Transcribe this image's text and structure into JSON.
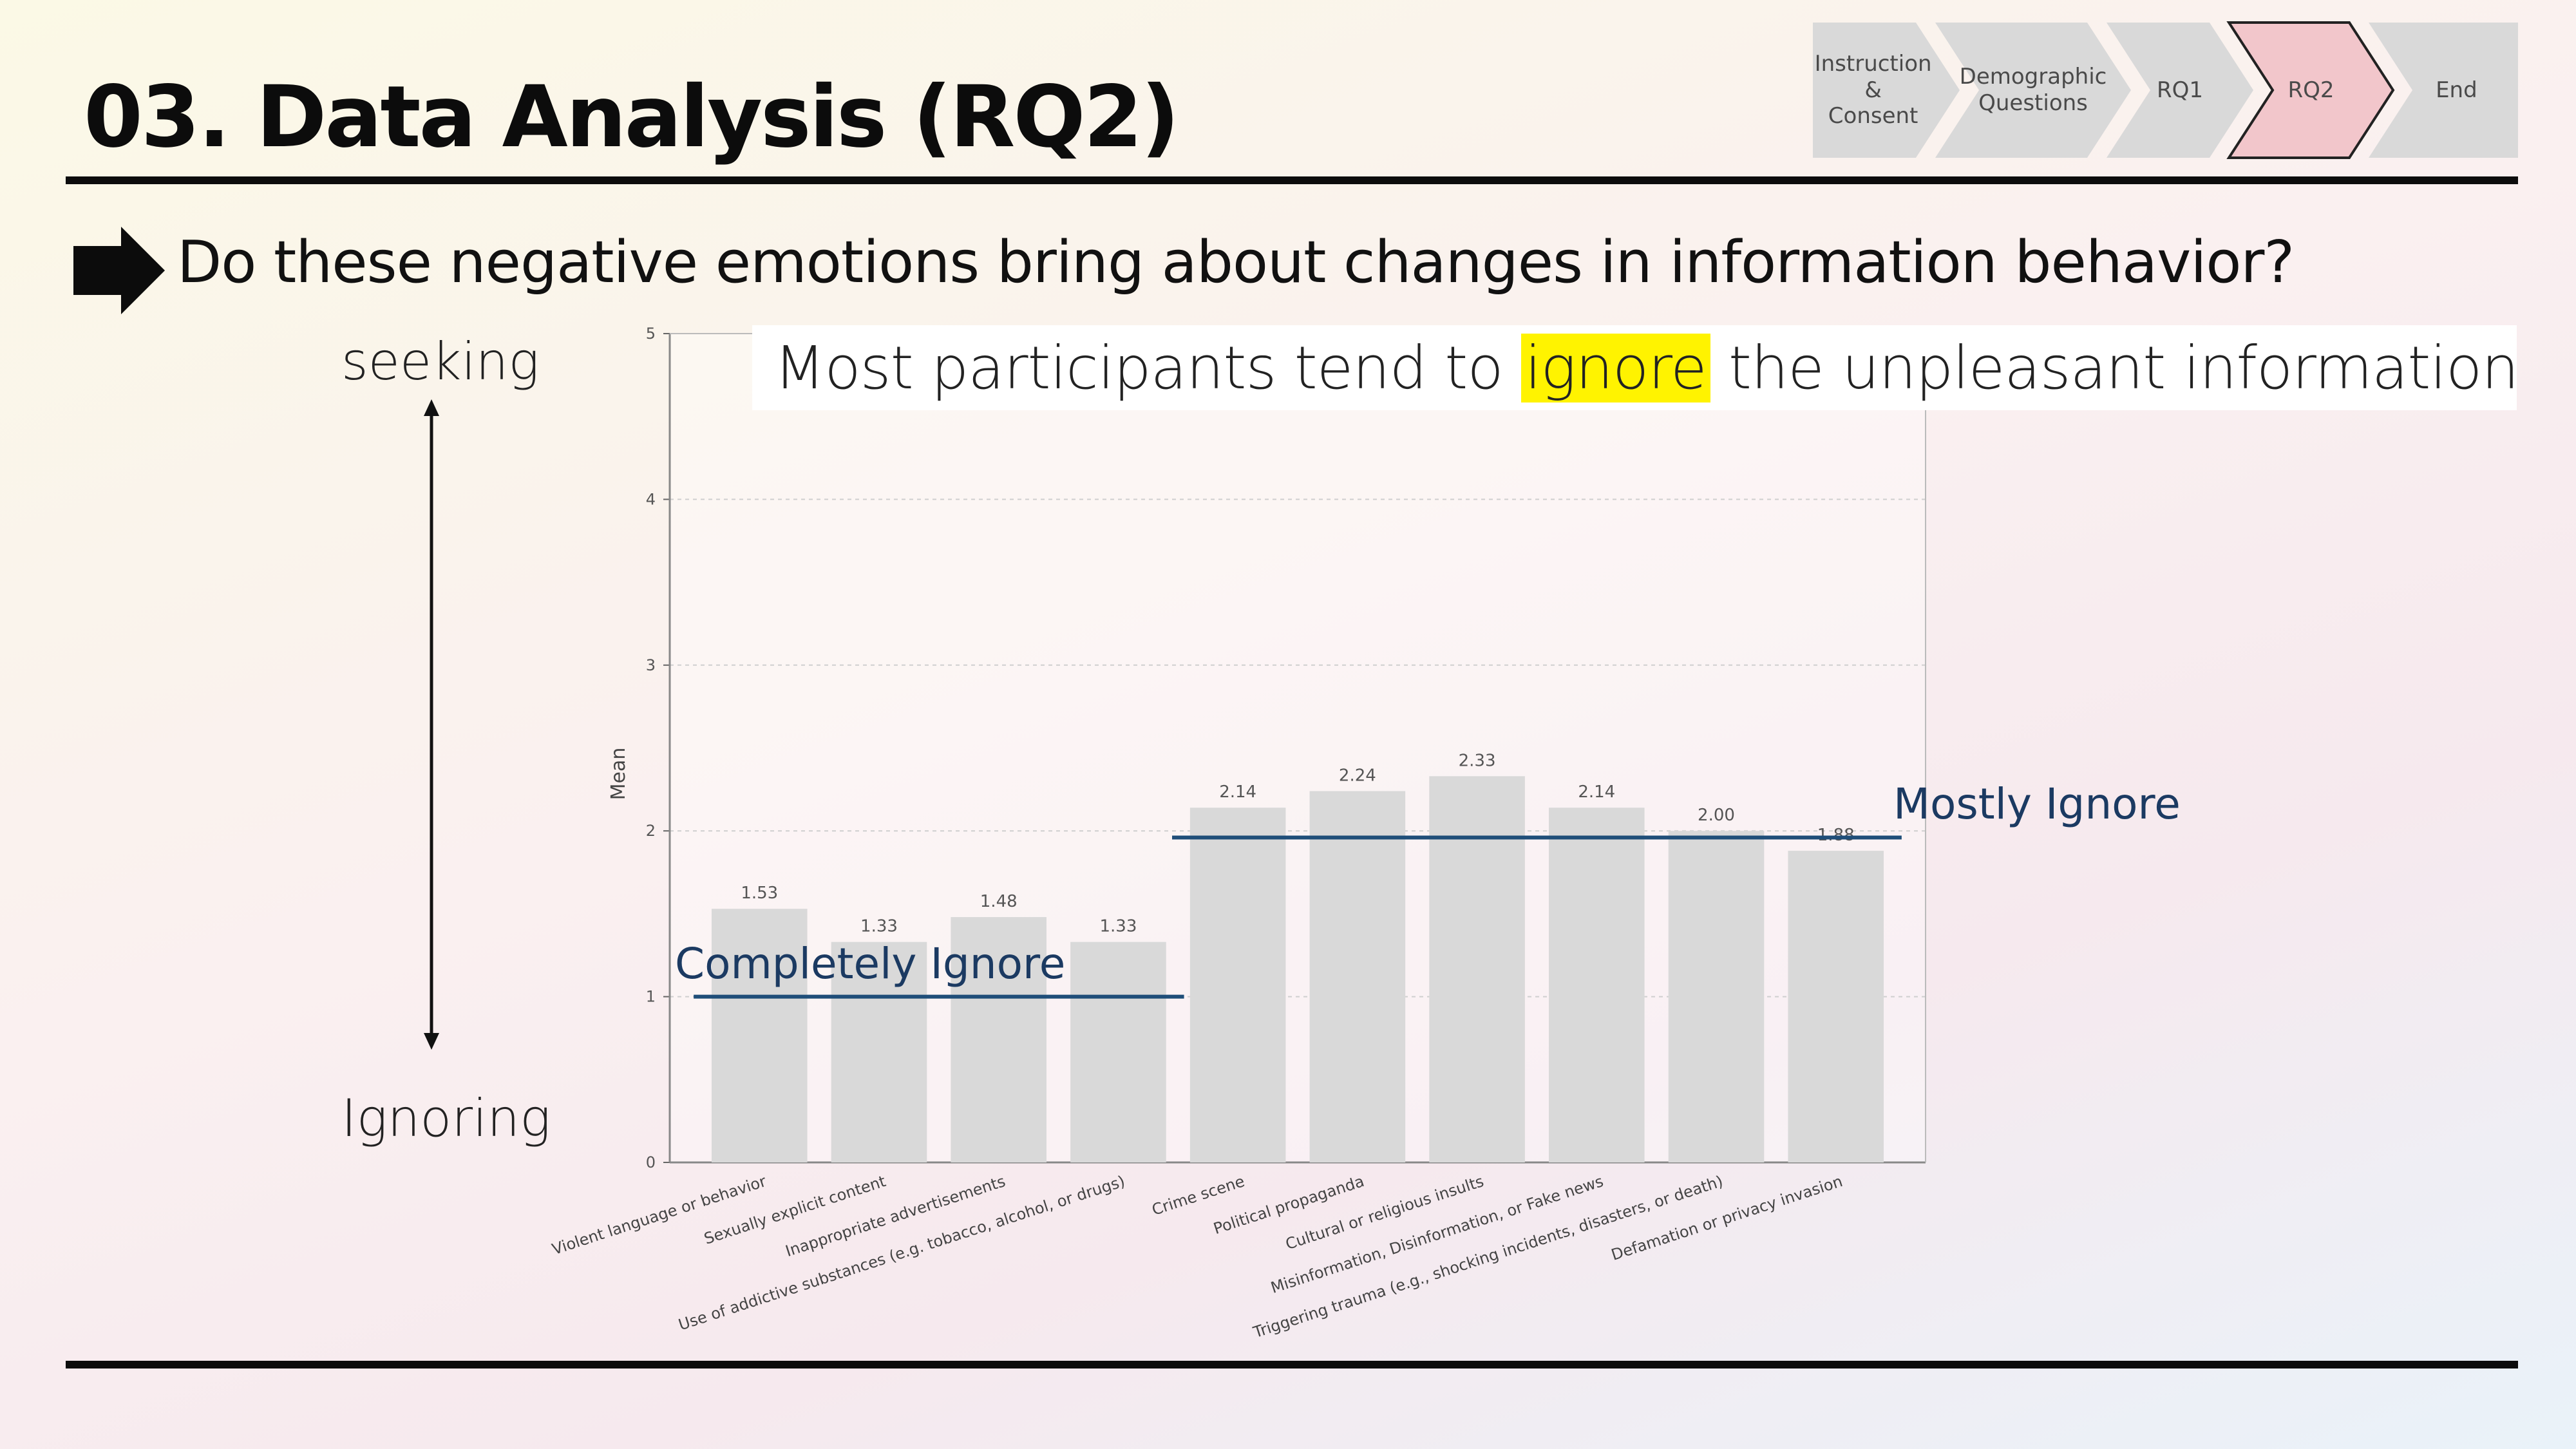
{
  "header": {
    "title": "03. Data Analysis (RQ2)"
  },
  "steps": [
    {
      "label": "Instruction\n&\nConsent",
      "active": false
    },
    {
      "label": "Demographic\nQuestions",
      "active": false
    },
    {
      "label": "RQ1",
      "active": false
    },
    {
      "label": "RQ2",
      "active": true
    },
    {
      "label": "End",
      "active": false
    }
  ],
  "colors": {
    "step_inactive": "#d9d9d9",
    "step_active": "#f2c6cb",
    "bar": "#d9d9d9",
    "annotation_line": "#1f4e79",
    "highlight": "#fff300"
  },
  "icons": {
    "question_marker": "right-arrow-icon",
    "scale_arrow": "double-arrow-vertical-icon"
  },
  "question": "Do these negative emotions bring about changes in information behavior?",
  "scale": {
    "top_label": "seeking",
    "bottom_label": "Ignoring"
  },
  "finding": {
    "before": "Most participants tend to ",
    "highlight": "ignore",
    "after": " the unpleasant information"
  },
  "annotations": [
    {
      "label": "Completely Ignore",
      "value": 1.0,
      "from_category": 0,
      "to_category": 3
    },
    {
      "label": "Mostly Ignore",
      "value": 1.96,
      "from_category": 4,
      "to_category": 9
    }
  ],
  "chart_data": {
    "type": "bar",
    "ylabel": "Mean",
    "ylim": [
      0,
      5
    ],
    "yticks": [
      0,
      1,
      2,
      3,
      4,
      5
    ],
    "grid": true,
    "categories": [
      "Violent language or behavior",
      "Sexually explicit content",
      "Inappropriate advertisements",
      "Use of addictive substances (e.g. tobacco, alcohol, or drugs)",
      "Crime scene",
      "Political propaganda",
      "Cultural or religious insults",
      "Misinformation, Disinformation, or Fake news",
      "Triggering trauma (e.g., shocking incidents, disasters, or death)",
      "Defamation or privacy invasion"
    ],
    "values": [
      1.53,
      1.33,
      1.48,
      1.33,
      2.14,
      2.24,
      2.33,
      2.14,
      2.0,
      1.88
    ],
    "value_labels": [
      "1.53",
      "1.33",
      "1.48",
      "1.33",
      "2.14",
      "2.24",
      "2.33",
      "2.14",
      "2.00",
      "1.88"
    ]
  }
}
